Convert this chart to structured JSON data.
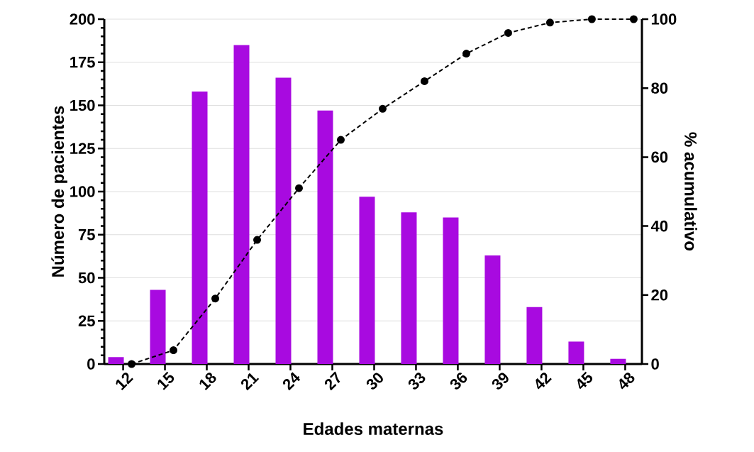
{
  "chart_data": {
    "type": "bar",
    "xlabel": "Edades maternas",
    "ylabel": "Número de pacientes",
    "y2label": "% acumulativo",
    "categories": [
      "12",
      "15",
      "18",
      "21",
      "24",
      "27",
      "30",
      "33",
      "36",
      "39",
      "42",
      "45",
      "48"
    ],
    "series": [
      {
        "color": "#a80ae0",
        "values": [
          4,
          43,
          158,
          185,
          166,
          147,
          97,
          88,
          85,
          63,
          33,
          13,
          3
        ]
      },
      {
        "type": "line",
        "axis": "y2",
        "color": "#000000",
        "marker": "circle",
        "line_style": "dashed",
        "values": [
          0,
          4,
          19,
          36,
          51,
          65,
          74,
          82,
          90,
          96,
          99,
          100,
          100
        ]
      }
    ],
    "ylim": [
      0,
      200
    ],
    "yticks": [
      0,
      25,
      50,
      75,
      100,
      125,
      150,
      175,
      200
    ],
    "y2lim": [
      0,
      100
    ],
    "y2ticks": [
      0,
      20,
      40,
      60,
      80,
      100
    ],
    "grid": "y"
  }
}
